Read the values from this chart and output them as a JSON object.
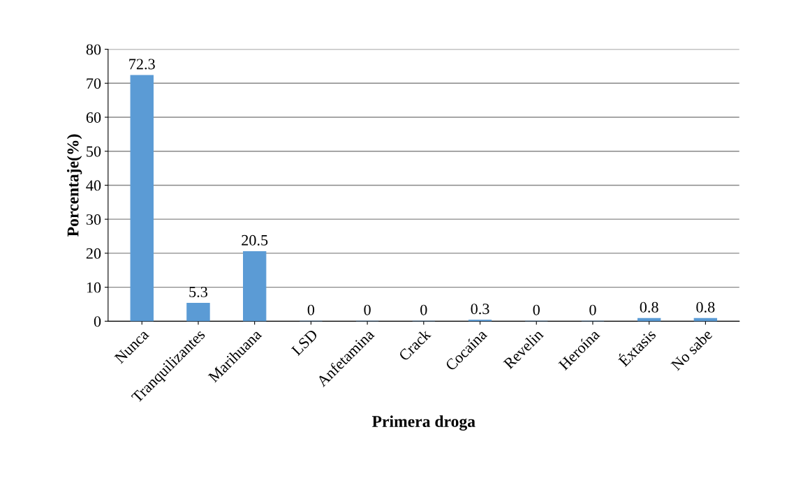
{
  "chart_data": {
    "type": "bar",
    "xlabel": "Primera droga",
    "ylabel": "Porcentaje(%)",
    "categories": [
      "Nunca",
      "Tranquilizantes",
      "Marihuana",
      "LSD",
      "Anfetamina",
      "Crack",
      "Cocaína",
      "Revelin",
      "Heroína",
      "Éxtasis",
      "No sabe"
    ],
    "values": [
      72.3,
      5.3,
      20.5,
      0,
      0,
      0,
      0.3,
      0,
      0,
      0.8,
      0.8
    ],
    "color": "#5b9bd5",
    "ylim": [
      0,
      80
    ],
    "yticks": [
      0,
      10,
      20,
      30,
      40,
      50,
      60,
      70,
      80
    ],
    "grid": "y",
    "data_labels": true,
    "legend": false
  }
}
